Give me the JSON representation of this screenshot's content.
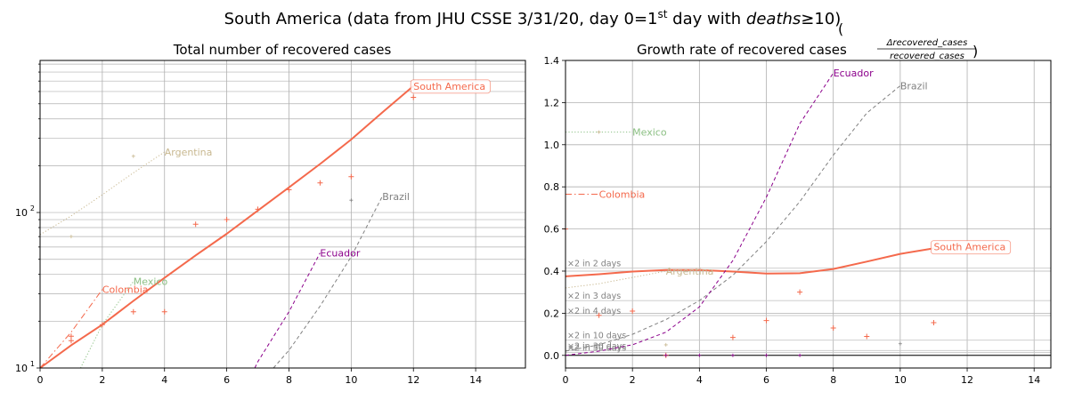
{
  "figure": {
    "suptitle_main": "South America (data from JHU CSSE 3/31/20, day 0=1",
    "suptitle_sup": "st",
    "suptitle_mid": " day with ",
    "suptitle_ital": "deaths",
    "suptitle_end": "≥10)"
  },
  "colors": {
    "south_america": "#f4694c",
    "brazil": "#808080",
    "ecuador": "#8b008b",
    "colombia": "#f4694c",
    "mexico": "#8cc084",
    "argentina": "#c8b890",
    "grid": "#b0b0b0",
    "hline": "#c8c8c8"
  },
  "chart_data": [
    {
      "type": "line",
      "title": "Total number of recovered cases",
      "yscale": "log",
      "xlim": [
        0,
        15.6
      ],
      "ylim": [
        10,
        950
      ],
      "xticks": [
        0,
        2,
        4,
        6,
        8,
        10,
        12,
        14
      ],
      "yticks": [
        {
          "value": 10,
          "base": "10",
          "exp": "1"
        },
        {
          "value": 100,
          "base": "10",
          "exp": "2"
        }
      ],
      "grid": true,
      "series": [
        {
          "name": "South America",
          "key": "south_america",
          "style": "solid",
          "width": 2,
          "x": [
            0,
            1,
            2,
            3,
            4,
            5,
            6,
            7,
            8,
            9,
            10,
            11,
            12
          ],
          "y": [
            10,
            14,
            19,
            27,
            38,
            53,
            73,
            103,
            145,
            205,
            295,
            440,
            650
          ],
          "label_x": 12,
          "label_y": 650,
          "boxed": true
        },
        {
          "name": "Brazil",
          "key": "brazil",
          "style": "dashed",
          "width": 1,
          "x": [
            7.5,
            8,
            9,
            10,
            11
          ],
          "y": [
            10,
            13,
            25,
            52,
            127
          ],
          "label_x": 11,
          "label_y": 127
        },
        {
          "name": "Ecuador",
          "key": "ecuador",
          "style": "dashed",
          "width": 1,
          "x": [
            6.9,
            7,
            8,
            9
          ],
          "y": [
            10,
            11,
            23,
            55
          ],
          "label_x": 9,
          "label_y": 55
        },
        {
          "name": "Colombia",
          "key": "colombia",
          "style": "dashdot",
          "width": 1,
          "x": [
            0,
            1,
            2
          ],
          "y": [
            10,
            17,
            32
          ],
          "label_x": 2,
          "label_y": 32
        },
        {
          "name": "Mexico",
          "key": "mexico",
          "style": "dotted",
          "width": 1,
          "x": [
            1.3,
            2,
            3
          ],
          "y": [
            10,
            19,
            36
          ],
          "label_x": 3,
          "label_y": 36
        },
        {
          "name": "Argentina",
          "key": "argentina",
          "style": "dotted",
          "width": 1,
          "x": [
            0,
            1,
            2,
            3,
            4
          ],
          "y": [
            72,
            95,
            130,
            180,
            245
          ],
          "label_x": 4,
          "label_y": 245
        }
      ],
      "markers": [
        {
          "key": "south_america",
          "x": [
            1,
            1,
            2,
            3,
            4,
            5,
            6,
            7,
            8,
            9,
            10,
            12
          ],
          "y": [
            15,
            16,
            19,
            23,
            23,
            84,
            90,
            105,
            140,
            155,
            170,
            550
          ]
        },
        {
          "key": "argentina",
          "x": [
            1,
            3
          ],
          "y": [
            70,
            230
          ]
        },
        {
          "key": "brazil",
          "x": [
            10
          ],
          "y": [
            120
          ]
        }
      ]
    },
    {
      "type": "line",
      "title_text": "Growth rate of recovered cases ",
      "title_num": "Δrecovered_cases",
      "title_den": "recovered_cases",
      "yscale": "linear",
      "xlim": [
        0,
        14.5
      ],
      "ylim": [
        -0.06,
        1.4
      ],
      "xticks": [
        0,
        2,
        4,
        6,
        8,
        10,
        12,
        14
      ],
      "yticks": [
        "0.0",
        "0.2",
        "0.4",
        "0.6",
        "0.8",
        "1.0",
        "1.2",
        "1.4"
      ],
      "ytick_values": [
        0,
        0.2,
        0.4,
        0.6,
        0.8,
        1.0,
        1.2,
        1.4
      ],
      "grid": true,
      "reference_lines": [
        {
          "label": "×2 in 2 days",
          "y": 0.414
        },
        {
          "label": "×2 in 3 days",
          "y": 0.26
        },
        {
          "label": "×2 in 4 days",
          "y": 0.189
        },
        {
          "label": "×2 in 10 days",
          "y": 0.072
        },
        {
          "label": "×2 in 30 days",
          "y": 0.023
        },
        {
          "label": "×2 in 50 days",
          "y": 0.014
        }
      ],
      "series": [
        {
          "name": "South America",
          "key": "south_america",
          "style": "solid",
          "width": 2,
          "x": [
            0,
            1,
            2,
            3,
            4,
            5,
            6,
            7,
            8,
            9,
            10,
            11
          ],
          "y": [
            0.375,
            0.385,
            0.398,
            0.405,
            0.405,
            0.398,
            0.388,
            0.39,
            0.41,
            0.445,
            0.482,
            0.508
          ],
          "label_x": 11,
          "label_y": 0.515,
          "boxed": true
        },
        {
          "name": "Brazil",
          "key": "brazil",
          "style": "dashed",
          "width": 1,
          "x": [
            0,
            1,
            2,
            3,
            4,
            5,
            6,
            7,
            8,
            9,
            10
          ],
          "y": [
            0.02,
            0.05,
            0.1,
            0.17,
            0.26,
            0.38,
            0.54,
            0.73,
            0.95,
            1.15,
            1.28
          ],
          "label_x": 10,
          "label_y": 1.28
        },
        {
          "name": "Ecuador",
          "key": "ecuador",
          "style": "dashed",
          "width": 1,
          "x": [
            0,
            1,
            2,
            3,
            4,
            5,
            6,
            7,
            8
          ],
          "y": [
            0.0,
            0.02,
            0.05,
            0.11,
            0.23,
            0.45,
            0.75,
            1.1,
            1.34
          ],
          "label_x": 8,
          "label_y": 1.34
        },
        {
          "name": "Colombia",
          "key": "colombia",
          "style": "dashdot",
          "width": 1,
          "x": [
            0,
            1
          ],
          "y": [
            0.765,
            0.765
          ],
          "label_x": 1,
          "label_y": 0.765
        },
        {
          "name": "Mexico",
          "key": "mexico",
          "style": "dotted",
          "width": 1,
          "x": [
            0,
            2
          ],
          "y": [
            1.06,
            1.06
          ],
          "label_x": 2,
          "label_y": 1.06
        },
        {
          "name": "Argentina",
          "key": "argentina",
          "style": "dotted",
          "width": 1,
          "x": [
            0,
            1,
            2,
            3
          ],
          "y": [
            0.32,
            0.34,
            0.37,
            0.4
          ],
          "label_x": 3,
          "label_y": 0.4
        }
      ],
      "markers": [
        {
          "key": "south_america",
          "x": [
            0,
            1,
            2,
            3,
            5,
            6,
            7,
            8,
            9,
            11
          ],
          "y": [
            0.6,
            0.19,
            0.21,
            0.0,
            0.085,
            0.165,
            0.3,
            0.13,
            0.09,
            0.155
          ]
        },
        {
          "key": "argentina",
          "x": [
            1,
            3
          ],
          "y": [
            1.06,
            0.05
          ]
        },
        {
          "key": "brazil",
          "x": [
            10
          ],
          "y": [
            0.055
          ]
        },
        {
          "key": "ecuador",
          "x": [
            3,
            4,
            5,
            6,
            7
          ],
          "y": [
            0.0,
            0.0,
            0.0,
            0.0,
            0.0
          ]
        }
      ]
    }
  ]
}
